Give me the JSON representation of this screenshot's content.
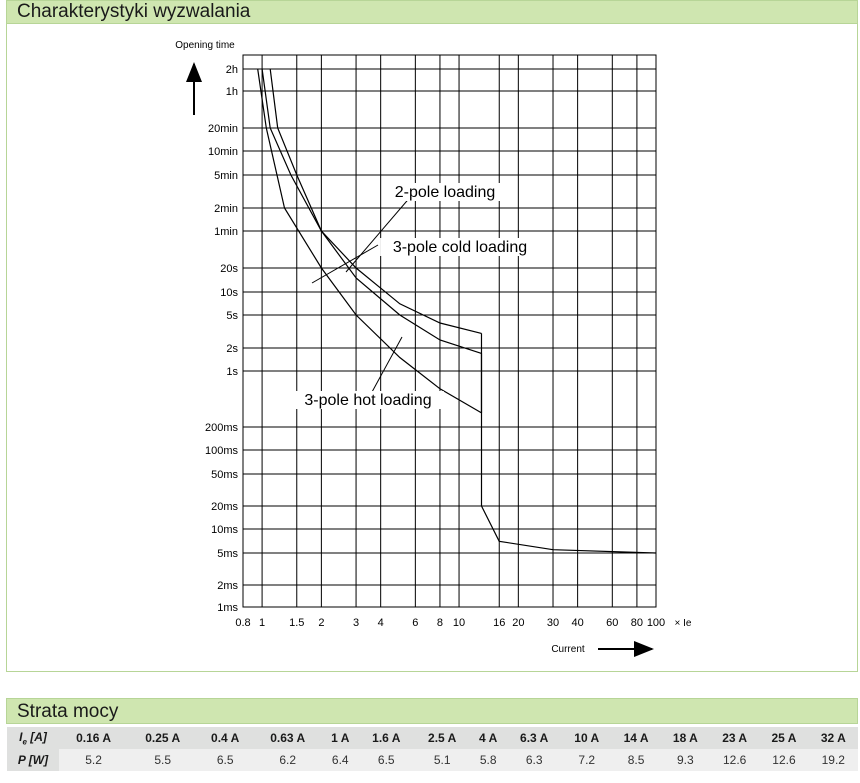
{
  "trip_section": {
    "title": "Charakterystyki wyzwalania"
  },
  "chart_data": {
    "type": "line",
    "y_scale": "log",
    "x_scale": "log",
    "ylabel": "Opening time",
    "xlabel": "Current",
    "x_unit_label": "× Ie",
    "x_ticks": [
      "0.8",
      "1",
      "1.5",
      "2",
      "3",
      "4",
      "6",
      "8",
      "10",
      "16",
      "20",
      "30",
      "40",
      "60",
      "80",
      "100"
    ],
    "y_ticks": [
      "2h",
      "1h",
      "20min",
      "10min",
      "5min",
      "2min",
      "1min",
      "20s",
      "10s",
      "5s",
      "2s",
      "1s",
      "200ms",
      "100ms",
      "50ms",
      "20ms",
      "10ms",
      "5ms",
      "2ms",
      "1ms"
    ],
    "grid": true,
    "series": [
      {
        "name": "2-pole loading",
        "points": [
          [
            "1.1",
            "2h"
          ],
          [
            "1.2",
            "20min"
          ],
          [
            "1.5",
            "5min"
          ],
          [
            "2",
            "1min"
          ],
          [
            "3",
            "20s"
          ],
          [
            "5",
            "7s"
          ],
          [
            "8",
            "4s"
          ],
          [
            "13",
            "3s"
          ]
        ]
      },
      {
        "name": "3-pole cold loading",
        "points": [
          [
            "1",
            "2h"
          ],
          [
            "1.1",
            "20min"
          ],
          [
            "1.4",
            "5min"
          ],
          [
            "2",
            "1min"
          ],
          [
            "3",
            "15s"
          ],
          [
            "5",
            "5s"
          ],
          [
            "8",
            "2.5s"
          ],
          [
            "13",
            "1.7s"
          ]
        ]
      },
      {
        "name": "3-pole hot loading",
        "points": [
          [
            "0.95",
            "2h"
          ],
          [
            "1.05",
            "20min"
          ],
          [
            "1.3",
            "2min"
          ],
          [
            "2",
            "20s"
          ],
          [
            "3",
            "5s"
          ],
          [
            "5",
            "1.5s"
          ],
          [
            "8",
            "0.6s"
          ],
          [
            "13",
            "0.3s"
          ]
        ]
      },
      {
        "name": "",
        "points": [
          [
            "13",
            "0.3s"
          ],
          [
            "13",
            "20ms"
          ],
          [
            "16",
            "7ms"
          ],
          [
            "30",
            "5.5ms"
          ],
          [
            "100",
            "5ms"
          ]
        ]
      }
    ]
  },
  "power_section": {
    "title": "Strata mocy",
    "row1_label_main": "I",
    "row1_label_sub": "e",
    "row1_label_unit": " [A]",
    "row2_label": "P [W]",
    "currents": [
      "0.16 A",
      "0.25 A",
      "0.4 A",
      "0.63 A",
      "1 A",
      "1.6 A",
      "2.5 A",
      "4 A",
      "6.3 A",
      "10 A",
      "14 A",
      "18 A",
      "23 A",
      "25 A",
      "32 A"
    ],
    "powers": [
      "5.2",
      "5.5",
      "6.5",
      "6.2",
      "6.4",
      "6.5",
      "5.1",
      "5.8",
      "6.3",
      "7.2",
      "8.5",
      "9.3",
      "12.6",
      "12.6",
      "19.2"
    ]
  }
}
